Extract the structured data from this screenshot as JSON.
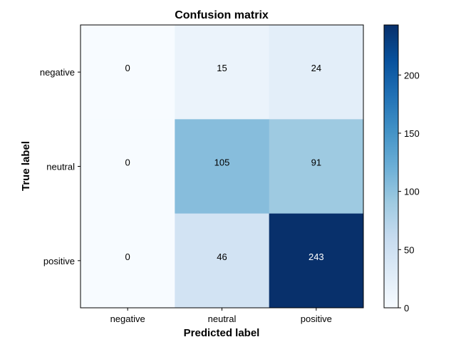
{
  "chart_data": {
    "type": "heatmap",
    "title": "Confusion matrix",
    "xlabel": "Predicted label",
    "ylabel": "True label",
    "x_categories": [
      "negative",
      "neutral",
      "positive"
    ],
    "y_categories": [
      "negative",
      "neutral",
      "positive"
    ],
    "values": [
      [
        0,
        15,
        24
      ],
      [
        0,
        105,
        91
      ],
      [
        0,
        46,
        243
      ]
    ],
    "colormap": "Blues",
    "color_range": [
      0,
      243
    ],
    "colorbar": {
      "ticks": [
        0,
        50,
        100,
        150,
        200
      ],
      "range": [
        0,
        243
      ]
    },
    "grid": false,
    "text_color_dark": "#000000",
    "text_color_light": "#ffffff"
  }
}
